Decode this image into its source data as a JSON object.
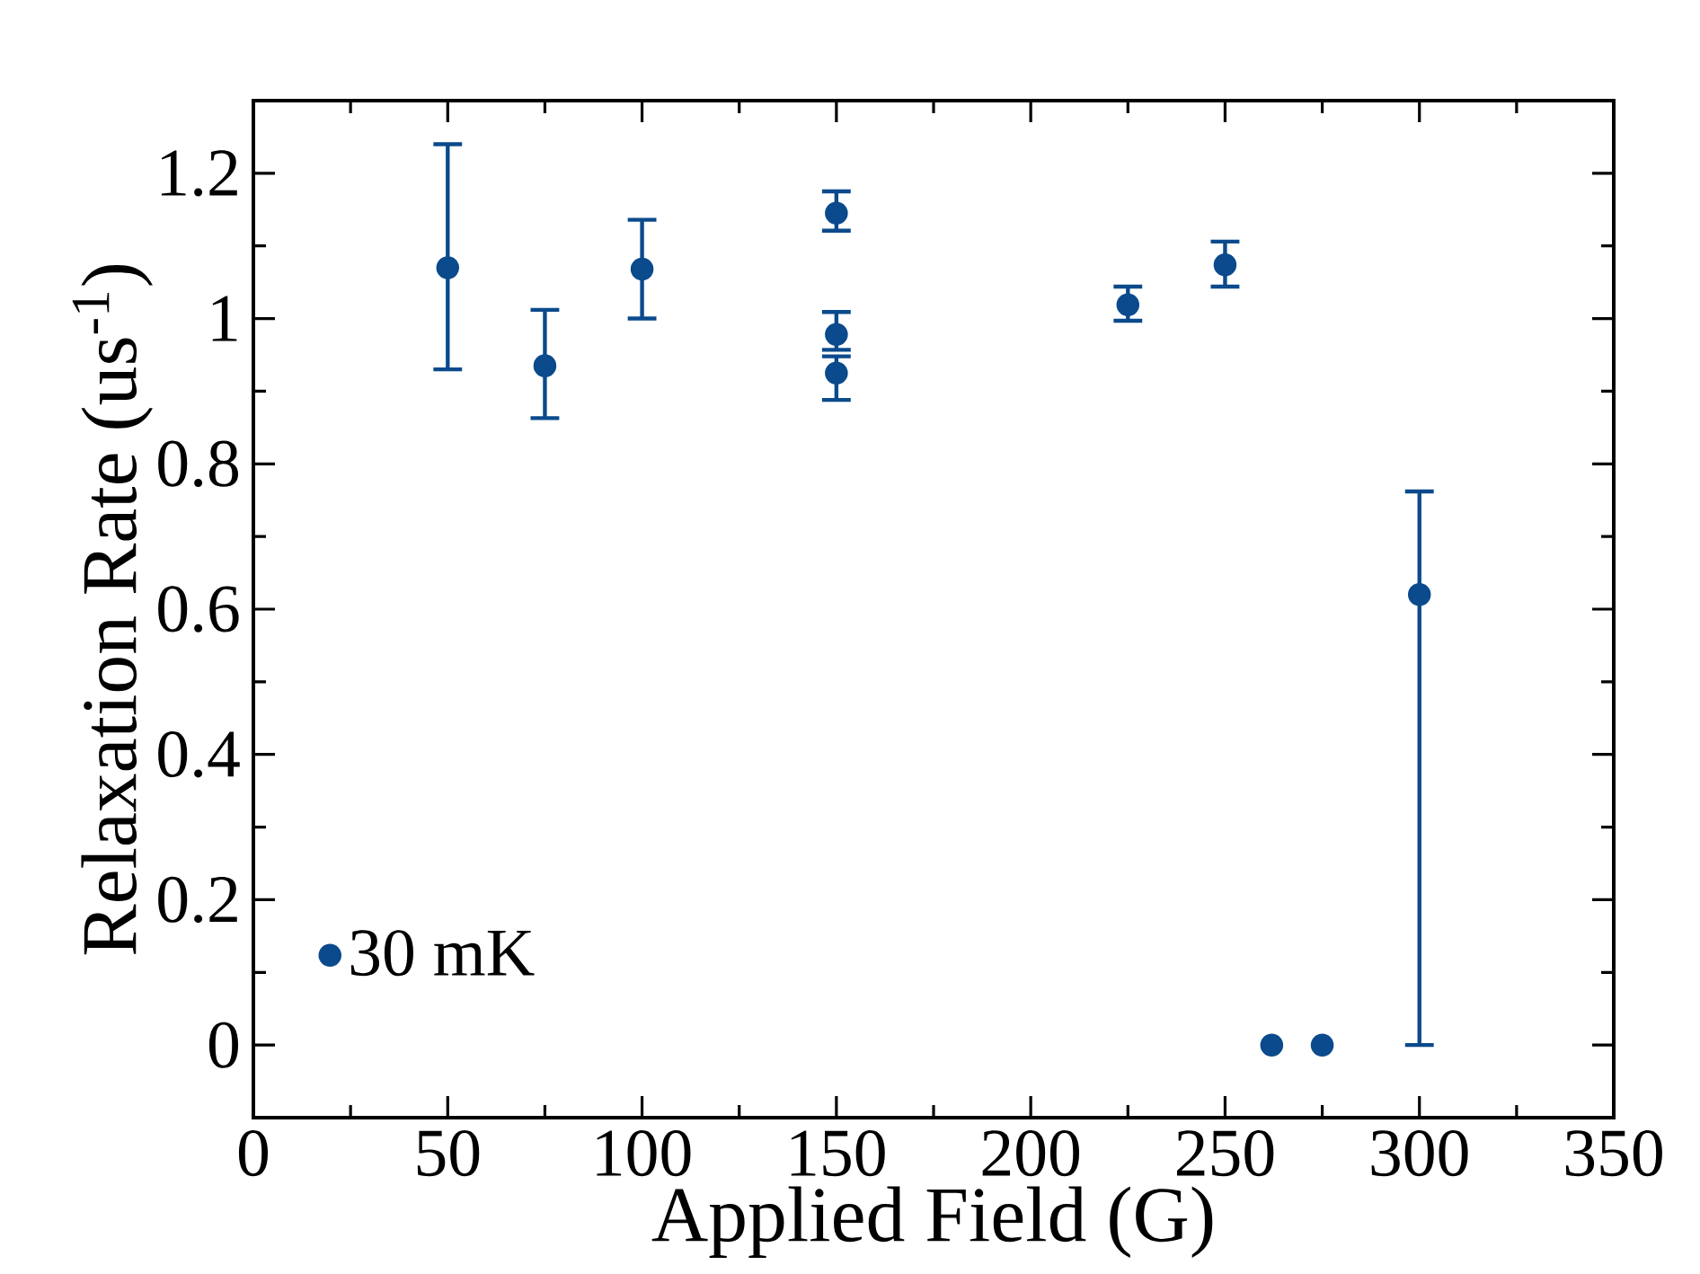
{
  "chart_data": {
    "type": "scatter",
    "xlabel": "Applied Field (G)",
    "ylabel": "Relaxation Rate (us$^{-1}$)",
    "xlim": [
      0,
      350
    ],
    "xticks": [
      0,
      50,
      100,
      150,
      200,
      250,
      300,
      350
    ],
    "ylim": [
      -0.1,
      1.3
    ],
    "yticks": [
      0,
      0.2,
      0.4,
      0.6,
      0.8,
      1,
      1.2
    ],
    "marker": "circle",
    "legend": "bottom left",
    "grid": false,
    "series": [
      {
        "name": "30 mK",
        "color": "#0b4a8c",
        "x": [
          50,
          75,
          100,
          150,
          150,
          150,
          225,
          250,
          262,
          275,
          300
        ],
        "values": [
          1.07,
          0.935,
          1.068,
          1.145,
          0.978,
          0.925,
          1.019,
          1.074,
          0,
          0,
          0.62
        ],
        "errors": [
          [
            0.93,
            1.24
          ],
          [
            0.863,
            1.012
          ],
          [
            1.0,
            1.136
          ],
          [
            1.121,
            1.175
          ],
          [
            0.957,
            1.009
          ],
          [
            0.888,
            0.948
          ],
          [
            0.997,
            1.044
          ],
          [
            1.044,
            1.106
          ],
          null,
          null,
          [
            0,
            0.762
          ]
        ]
      }
    ]
  }
}
